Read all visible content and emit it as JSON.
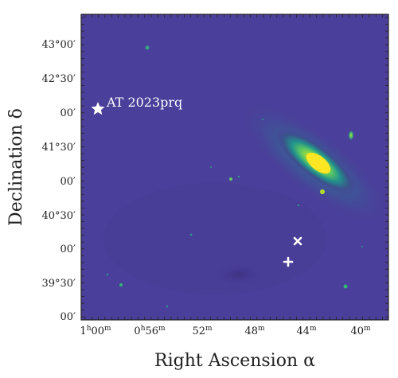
{
  "figure": {
    "xlabel": "Right Ascension α",
    "ylabel": "Declination δ",
    "x_ticks": [
      {
        "main": "1",
        "unit_h": "h",
        "mid": "00",
        "unit_m": "m"
      },
      {
        "main": "0",
        "unit_h": "h",
        "mid": "56",
        "unit_m": "m"
      },
      {
        "main": "52",
        "unit_h": "",
        "mid": "",
        "unit_m": "m"
      },
      {
        "main": "48",
        "unit_h": "",
        "mid": "",
        "unit_m": "m"
      },
      {
        "main": "44",
        "unit_h": "",
        "mid": "",
        "unit_m": "m"
      },
      {
        "main": "40",
        "unit_h": "",
        "mid": "",
        "unit_m": "m"
      }
    ],
    "y_ticks": [
      "43°00′",
      "42°30′",
      "00′",
      "41°30′",
      "00′",
      "40°30′",
      "00′",
      "39°30′",
      "00′"
    ],
    "annotation": {
      "label": "AT 2023prq",
      "marker": "star"
    },
    "markers": [
      {
        "symbol": "x",
        "name": "cross-marker"
      },
      {
        "symbol": "+",
        "name": "plus-marker"
      }
    ],
    "colors": {
      "background": "#4a3f9a",
      "galaxy_core": "#fde725",
      "galaxy_mid": "#5ec962",
      "galaxy_outer": "#21918c",
      "marker": "#ffffff"
    }
  }
}
